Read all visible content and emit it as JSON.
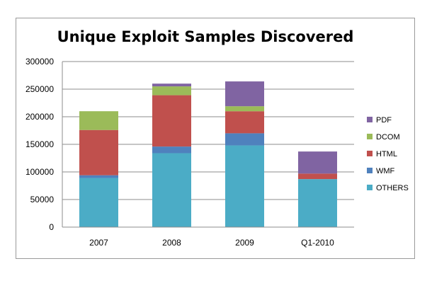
{
  "chart_data": {
    "type": "bar",
    "stacked": true,
    "title": "Unique Exploit Samples Discovered",
    "xlabel": "",
    "ylabel": "",
    "categories": [
      "2007",
      "2008",
      "2009",
      "Q1-2010"
    ],
    "ylim": [
      0,
      300000
    ],
    "yticks": [
      0,
      50000,
      100000,
      150000,
      200000,
      250000,
      300000
    ],
    "grid": true,
    "legend_position": "right",
    "series": [
      {
        "name": "OTHERS",
        "color": "#4BACC6",
        "values": [
          89000,
          134000,
          148000,
          87000
        ]
      },
      {
        "name": "WMF",
        "color": "#4F81BD",
        "values": [
          5000,
          12000,
          22000,
          0
        ]
      },
      {
        "name": "HTML",
        "color": "#C0504D",
        "values": [
          82000,
          93000,
          40000,
          10000
        ]
      },
      {
        "name": "DCOM",
        "color": "#9BBB59",
        "values": [
          34000,
          16000,
          9000,
          0
        ]
      },
      {
        "name": "PDF",
        "color": "#8064A2",
        "values": [
          0,
          5000,
          45000,
          40000
        ]
      }
    ]
  }
}
